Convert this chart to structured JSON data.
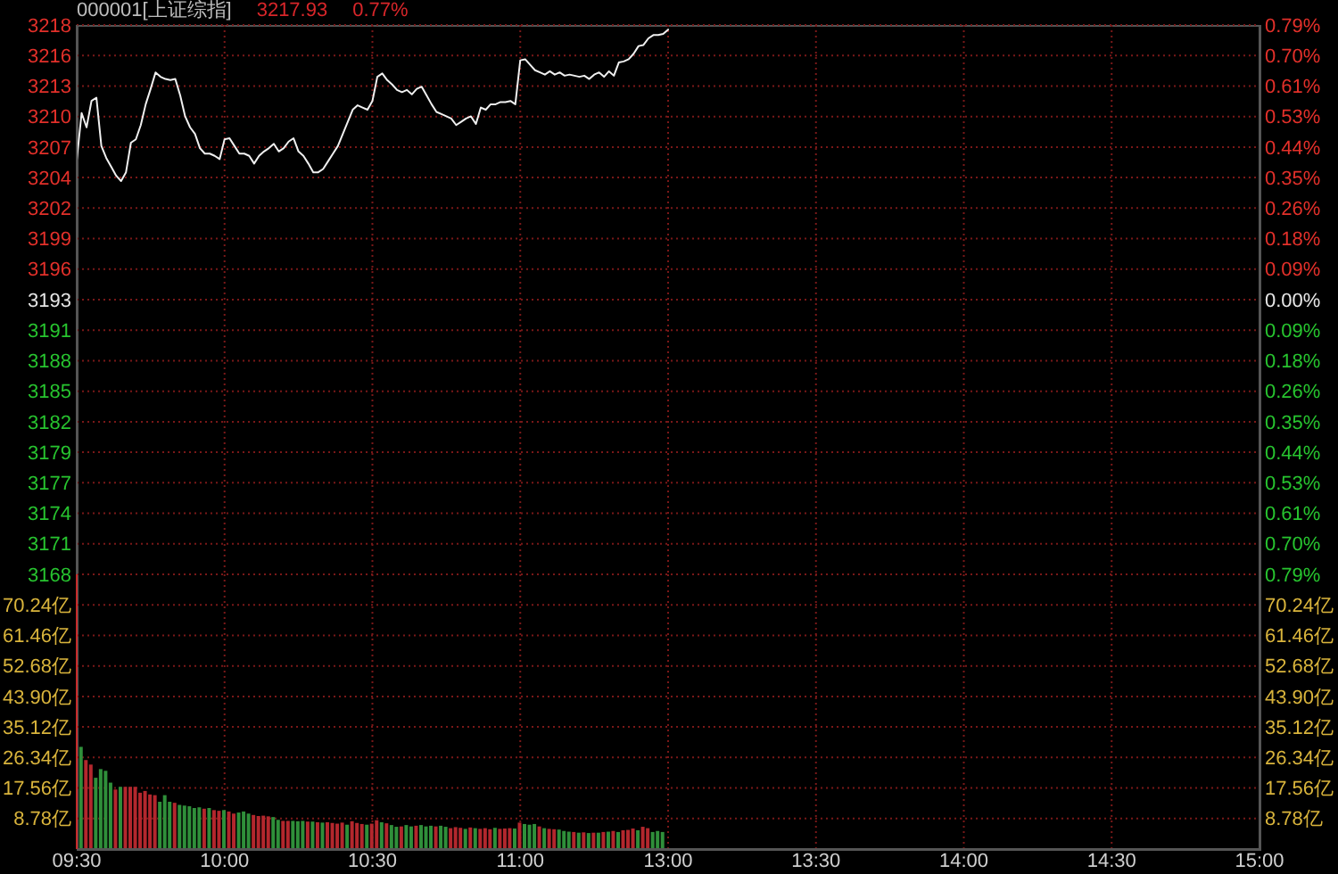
{
  "chart_data": [
    {
      "type": "line",
      "title": "000001[上证综指]",
      "annotations": [
        "3217.93",
        "0.77%"
      ],
      "categories": [
        null,
        null,
        null,
        null,
        null,
        null,
        null,
        null,
        null,
        null,
        null,
        null,
        null,
        null,
        null,
        null,
        null,
        null,
        null,
        null,
        null,
        null,
        null,
        null,
        null,
        null,
        null,
        null,
        null,
        null,
        null,
        null,
        null,
        null,
        null,
        null,
        null,
        null,
        null,
        null,
        null,
        null,
        null,
        null,
        null,
        null,
        null,
        null,
        null,
        null,
        null,
        null,
        null,
        null,
        null,
        null,
        null,
        null,
        null,
        null,
        null,
        null,
        null,
        null,
        null,
        null,
        null,
        null,
        null,
        null,
        null,
        null,
        null,
        null,
        null,
        null,
        null,
        null,
        null,
        null,
        null,
        null,
        null,
        null,
        null,
        null,
        null,
        null,
        null,
        null,
        null,
        null,
        null,
        null,
        null,
        null,
        null,
        null,
        null,
        null,
        null,
        null,
        null,
        null,
        null,
        null,
        null,
        null,
        null,
        null,
        null,
        null,
        null,
        null,
        null,
        null,
        null,
        null,
        null,
        null,
        null,
        null,
        null,
        null,
        null,
        null,
        null,
        null,
        null,
        null,
        null,
        null,
        null,
        null,
        null,
        null,
        null,
        null,
        null,
        null,
        null,
        null,
        null,
        null,
        null,
        null,
        null,
        null,
        null,
        null,
        null,
        null,
        null,
        null,
        null,
        null,
        null,
        null,
        null,
        null,
        null,
        null,
        null,
        null,
        null,
        null,
        null,
        null,
        null,
        null,
        null,
        null,
        null,
        null,
        null,
        null,
        null,
        null,
        null,
        null,
        null,
        null,
        null,
        null,
        null,
        null,
        null,
        null,
        null,
        null,
        null,
        null,
        null,
        null,
        null,
        null,
        null,
        null,
        null,
        null,
        null,
        null,
        null,
        null,
        null,
        null,
        null,
        null,
        null,
        null,
        null,
        null,
        null,
        null,
        null,
        null,
        null,
        null,
        null,
        null,
        null,
        null,
        null,
        null,
        null,
        null,
        null,
        null,
        null,
        null,
        null,
        null,
        null,
        null,
        null,
        null,
        null,
        null,
        null,
        null,
        null
      ],
      "values": [
        3206.0,
        3210.3,
        3209.0,
        3211.4,
        3211.7,
        3207.3,
        3206.2,
        3205.4,
        3204.6,
        3204.1,
        3204.9,
        3207.6,
        3207.9,
        3209.2,
        3211.1,
        3212.5,
        3214.0,
        3213.6,
        3213.4,
        3213.3,
        3213.4,
        3211.9,
        3210.0,
        3209.0,
        3208.4,
        3207.1,
        3206.6,
        3206.6,
        3206.4,
        3206.1,
        3207.9,
        3208.0,
        3207.3,
        3206.6,
        3206.6,
        3206.4,
        3205.7,
        3206.4,
        3206.8,
        3207.1,
        3207.5,
        3206.8,
        3207.1,
        3207.7,
        3208.0,
        3206.8,
        3206.4,
        3205.7,
        3204.9,
        3204.9,
        3205.2,
        3205.9,
        3206.6,
        3207.3,
        3208.4,
        3209.5,
        3210.6,
        3211.0,
        3210.8,
        3210.6,
        3211.4,
        3213.6,
        3213.9,
        3213.3,
        3212.9,
        3212.4,
        3212.2,
        3212.4,
        3212.0,
        3212.5,
        3212.7,
        3211.9,
        3211.1,
        3210.4,
        3210.2,
        3210.0,
        3209.8,
        3209.2,
        3209.5,
        3209.8,
        3210.0,
        3209.3,
        3210.8,
        3210.6,
        3211.1,
        3211.1,
        3211.3,
        3211.3,
        3211.4,
        3211.1,
        3215.1,
        3215.2,
        3214.7,
        3214.2,
        3214.0,
        3213.8,
        3214.1,
        3213.8,
        3214.0,
        3213.7,
        3213.8,
        3213.7,
        3213.6,
        3213.7,
        3213.4,
        3213.8,
        3214.0,
        3213.6,
        3214.1,
        3213.7,
        3214.9,
        3215.0,
        3215.2,
        3215.7,
        3216.4,
        3216.5,
        3217.1,
        3217.4,
        3217.4,
        3217.5,
        3217.9,
        null,
        null,
        null,
        null,
        null,
        null,
        null,
        null,
        null,
        null,
        null,
        null,
        null,
        null,
        null,
        null,
        null,
        null,
        null,
        null,
        null,
        null,
        null,
        null,
        null,
        null,
        null,
        null,
        null,
        null,
        null,
        null,
        null,
        null,
        null,
        null,
        null,
        null,
        null,
        null,
        null,
        null,
        null,
        null,
        null,
        null,
        null,
        null,
        null,
        null,
        null,
        null,
        null,
        null,
        null,
        null,
        null,
        null,
        null,
        null,
        null,
        null,
        null,
        null,
        null,
        null,
        null,
        null,
        null,
        null,
        null,
        null,
        null,
        null,
        null,
        null,
        null,
        null,
        null,
        null,
        null,
        null,
        null,
        null,
        null,
        null,
        null,
        null,
        null,
        null,
        null,
        null,
        null,
        null,
        null,
        null,
        null,
        null,
        null,
        null,
        null,
        null,
        null,
        null,
        null,
        null,
        null,
        null,
        null,
        null,
        null,
        null,
        null,
        null,
        null,
        null,
        null,
        null,
        null,
        null
      ],
      "color": "#f0f0f0",
      "ylim": [
        3168.28,
        3218.32
      ],
      "yticks": [
        {
          "value": 3168.28,
          "label": "3168"
        },
        {
          "value": 3171.06,
          "label": "3171"
        },
        {
          "value": 3173.84,
          "label": "3174"
        },
        {
          "value": 3176.62,
          "label": "3177"
        },
        {
          "value": 3179.4,
          "label": "3179"
        },
        {
          "value": 3182.18,
          "label": "3182"
        },
        {
          "value": 3184.96,
          "label": "3185"
        },
        {
          "value": 3187.74,
          "label": "3188"
        },
        {
          "value": 3190.52,
          "label": "3191"
        },
        {
          "value": 3193.3,
          "label": "3193"
        },
        {
          "value": 3196.08,
          "label": "3196"
        },
        {
          "value": 3198.86,
          "label": "3199"
        },
        {
          "value": 3201.64,
          "label": "3202"
        },
        {
          "value": 3204.42,
          "label": "3204"
        },
        {
          "value": 3207.2,
          "label": "3207"
        },
        {
          "value": 3209.98,
          "label": "3210"
        },
        {
          "value": 3212.76,
          "label": "3213"
        },
        {
          "value": 3215.54,
          "label": "3216"
        },
        {
          "value": 3218.32,
          "label": "3218"
        }
      ],
      "y2lim": [
        -0.79,
        0.79
      ],
      "y2ticks": [
        {
          "value": -0.79,
          "label": "0.79%"
        },
        {
          "value": -0.702,
          "label": "0.70%"
        },
        {
          "value": -0.614,
          "label": "0.61%"
        },
        {
          "value": -0.527,
          "label": "0.53%"
        },
        {
          "value": -0.439,
          "label": "0.44%"
        },
        {
          "value": -0.351,
          "label": "0.35%"
        },
        {
          "value": -0.263,
          "label": "0.26%"
        },
        {
          "value": -0.176,
          "label": "0.18%"
        },
        {
          "value": -0.088,
          "label": "0.09%"
        },
        {
          "value": 0,
          "label": "0.00%"
        },
        {
          "value": 0.088,
          "label": "0.09%"
        },
        {
          "value": 0.176,
          "label": "0.18%"
        },
        {
          "value": 0.263,
          "label": "0.26%"
        },
        {
          "value": 0.351,
          "label": "0.35%"
        },
        {
          "value": 0.439,
          "label": "0.44%"
        },
        {
          "value": 0.527,
          "label": "0.53%"
        },
        {
          "value": 0.614,
          "label": "0.61%"
        },
        {
          "value": 0.702,
          "label": "0.70%"
        },
        {
          "value": 0.79,
          "label": "0.79%"
        }
      ],
      "grid": true,
      "tick_labels": "y"
    },
    {
      "type": "bar",
      "categories": [
        "09:30",
        null,
        null,
        null,
        null,
        null,
        null,
        null,
        null,
        null,
        null,
        null,
        null,
        null,
        null,
        null,
        null,
        null,
        null,
        null,
        null,
        null,
        null,
        null,
        null,
        null,
        null,
        null,
        null,
        null,
        "10:00",
        null,
        null,
        null,
        null,
        null,
        null,
        null,
        null,
        null,
        null,
        null,
        null,
        null,
        null,
        null,
        null,
        null,
        null,
        null,
        null,
        null,
        null,
        null,
        null,
        null,
        null,
        null,
        null,
        null,
        "10:30",
        null,
        null,
        null,
        null,
        null,
        null,
        null,
        null,
        null,
        null,
        null,
        null,
        null,
        null,
        null,
        null,
        null,
        null,
        null,
        null,
        null,
        null,
        null,
        null,
        null,
        null,
        null,
        null,
        null,
        "11:00",
        null,
        null,
        null,
        null,
        null,
        null,
        null,
        null,
        null,
        null,
        null,
        null,
        null,
        null,
        null,
        null,
        null,
        null,
        null,
        null,
        null,
        null,
        null,
        null,
        null,
        null,
        null,
        null,
        null,
        "13:00",
        null,
        null,
        null,
        null,
        null,
        null,
        null,
        null,
        null,
        null,
        null,
        null,
        null,
        null,
        null,
        null,
        null,
        null,
        null,
        null,
        null,
        null,
        null,
        null,
        null,
        null,
        null,
        null,
        null,
        "13:30",
        null,
        null,
        null,
        null,
        null,
        null,
        null,
        null,
        null,
        null,
        null,
        null,
        null,
        null,
        null,
        null,
        null,
        null,
        null,
        null,
        null,
        null,
        null,
        null,
        null,
        null,
        null,
        null,
        null,
        "14:00",
        null,
        null,
        null,
        null,
        null,
        null,
        null,
        null,
        null,
        null,
        null,
        null,
        null,
        null,
        null,
        null,
        null,
        null,
        null,
        null,
        null,
        null,
        null,
        null,
        null,
        null,
        null,
        null,
        null,
        "14:30",
        null,
        null,
        null,
        null,
        null,
        null,
        null,
        null,
        null,
        null,
        null,
        null,
        null,
        null,
        null,
        null,
        null,
        null,
        null,
        null,
        null,
        null,
        null,
        null,
        null,
        null,
        null,
        null,
        null,
        "15:00"
      ],
      "values": [
        null,
        29.4,
        25.6,
        24.3,
        20.5,
        23.0,
        22.5,
        19.1,
        17.1,
        17.9,
        17.9,
        17.9,
        17.9,
        16.2,
        16.7,
        15.7,
        15.5,
        13.6,
        15.5,
        13.6,
        13.3,
        12.7,
        12.5,
        12.3,
        11.8,
        12.0,
        11.6,
        11.8,
        11.2,
        11.0,
        11.2,
        10.8,
        10.2,
        10.5,
        10.8,
        10.2,
        9.8,
        9.5,
        9.6,
        9.4,
        9.2,
        8.4,
        8.1,
        8.1,
        8.1,
        8.0,
        8.1,
        7.9,
        7.9,
        7.7,
        7.6,
        7.7,
        7.5,
        7.3,
        7.6,
        7.0,
        8.0,
        7.5,
        7.2,
        7.0,
        7.3,
        8.3,
        7.7,
        7.4,
        6.9,
        6.4,
        6.5,
        6.9,
        6.5,
        6.7,
        6.9,
        6.5,
        6.7,
        6.5,
        6.7,
        6.4,
        6.0,
        6.3,
        6.1,
        5.8,
        6.2,
        6.0,
        5.8,
        6.0,
        5.7,
        6.1,
        5.8,
        5.9,
        6.0,
        5.9,
        7.6,
        7.2,
        7.0,
        7.2,
        6.5,
        6.0,
        5.8,
        5.7,
        5.6,
        5.2,
        5.0,
        4.9,
        4.7,
        4.8,
        4.6,
        4.7,
        4.7,
        4.9,
        5.0,
        5.2,
        4.9,
        5.4,
        5.5,
        5.9,
        5.4,
        6.4,
        6.0,
        4.9,
        5.2,
        4.9,
        null,
        null,
        null,
        null,
        null,
        null,
        null,
        null,
        null,
        null,
        null,
        null,
        null,
        null,
        null,
        null,
        null,
        null,
        null,
        null,
        null,
        null,
        null,
        null,
        null,
        null,
        null,
        null,
        null,
        null,
        null,
        null,
        null,
        null,
        null,
        null,
        null,
        null,
        null,
        null,
        null,
        null,
        null,
        null,
        null,
        null,
        null,
        null,
        null,
        null,
        null,
        null,
        null,
        null,
        null,
        null,
        null,
        null,
        null,
        null,
        null,
        null,
        null,
        null,
        null,
        null,
        null,
        null,
        null,
        null,
        null,
        null,
        null,
        null,
        null,
        null,
        null,
        null,
        null,
        null,
        null,
        null,
        null,
        null,
        null,
        null,
        null,
        null,
        null,
        null,
        null,
        null,
        null,
        null,
        null,
        null,
        null,
        null,
        null,
        null,
        null,
        null,
        null,
        null,
        null,
        null,
        null,
        null,
        null,
        null,
        null,
        null,
        null,
        null,
        null,
        null,
        null,
        null,
        null,
        null,
        null
      ],
      "colors": [
        null,
        "#2f8f3a",
        "#b3272d",
        "#b3272d",
        "#2f8f3a",
        "#2f8f3a",
        "#2f8f3a",
        "#2f8f3a",
        "#b3272d",
        "#2f8f3a",
        "#b3272d",
        "#b3272d",
        "#b3272d",
        "#b3272d",
        "#b3272d",
        "#b3272d",
        "#b3272d",
        "#2f8f3a",
        "#2f8f3a",
        "#2f8f3a",
        "#b3272d",
        "#2f8f3a",
        "#2f8f3a",
        "#2f8f3a",
        "#2f8f3a",
        "#2f8f3a",
        "#b3272d",
        "#2f8f3a",
        "#b3272d",
        "#b3272d",
        "#2f8f3a",
        "#b3272d",
        "#b3272d",
        "#2f8f3a",
        "#2f8f3a",
        "#2f8f3a",
        "#b3272d",
        "#b3272d",
        "#b3272d",
        "#b3272d",
        "#2f8f3a",
        "#2f8f3a",
        "#b3272d",
        "#b3272d",
        "#2f8f3a",
        "#2f8f3a",
        "#2f8f3a",
        "#b3272d",
        "#2f8f3a",
        "#b3272d",
        "#2f8f3a",
        "#b3272d",
        "#b3272d",
        "#b3272d",
        "#b3272d",
        "#2f8f3a",
        "#b3272d",
        "#b3272d",
        "#b3272d",
        "#2f8f3a",
        "#b3272d",
        "#b3272d",
        "#2f8f3a",
        "#b3272d",
        "#2f8f3a",
        "#2f8f3a",
        "#b3272d",
        "#2f8f3a",
        "#2f8f3a",
        "#b3272d",
        "#2f8f3a",
        "#2f8f3a",
        "#2f8f3a",
        "#b3272d",
        "#2f8f3a",
        "#2f8f3a",
        "#b3272d",
        "#b3272d",
        "#b3272d",
        "#2f8f3a",
        "#b3272d",
        "#2f8f3a",
        "#b3272d",
        "#b3272d",
        "#b3272d",
        "#2f8f3a",
        "#b3272d",
        "#b3272d",
        "#b3272d",
        "#2f8f3a",
        "#b3272d",
        "#2f8f3a",
        "#2f8f3a",
        "#2f8f3a",
        "#b3272d",
        "#2f8f3a",
        "#b3272d",
        "#b3272d",
        "#2f8f3a",
        "#2f8f3a",
        "#2f8f3a",
        "#b3272d",
        "#2f8f3a",
        "#b3272d",
        "#2f8f3a",
        "#b3272d",
        "#2f8f3a",
        "#b3272d",
        "#2f8f3a",
        "#b3272d",
        "#2f8f3a",
        "#b3272d",
        "#b3272d",
        "#b3272d",
        "#2f8f3a",
        "#b3272d",
        "#b3272d",
        "#2f8f3a",
        "#2f8f3a",
        "#2f8f3a",
        null,
        null,
        null,
        null,
        null,
        null,
        null,
        null,
        null,
        null,
        null,
        null,
        null,
        null,
        null,
        null,
        null,
        null,
        null,
        null,
        null,
        null,
        null,
        null,
        null,
        null,
        null,
        null,
        null,
        null,
        null,
        null,
        null,
        null,
        null,
        null,
        null,
        null,
        null,
        null,
        null,
        null,
        null,
        null,
        null,
        null,
        null,
        null,
        null,
        null,
        null,
        null,
        null,
        null,
        null,
        null,
        null,
        null,
        null,
        null,
        null,
        null,
        null,
        null,
        null,
        null,
        null,
        null,
        null,
        null,
        null,
        null,
        null,
        null,
        null,
        null,
        null,
        null,
        null,
        null,
        null,
        null,
        null,
        null,
        null,
        null,
        null,
        null,
        null,
        null,
        null,
        null,
        null,
        null,
        null,
        null,
        null,
        null,
        null,
        null,
        null,
        null,
        null,
        null,
        null,
        null,
        null,
        null,
        null,
        null,
        null,
        null,
        null,
        null,
        null,
        null,
        null,
        null,
        null,
        null,
        null
      ],
      "ylim": [
        0,
        79.02
      ],
      "yticks": [
        {
          "value": 8.78,
          "label": "8.78亿"
        },
        {
          "value": 17.56,
          "label": "17.56亿"
        },
        {
          "value": 26.34,
          "label": "26.34亿"
        },
        {
          "value": 35.12,
          "label": "35.12亿"
        },
        {
          "value": 43.9,
          "label": "43.90亿"
        },
        {
          "value": 52.68,
          "label": "52.68亿"
        },
        {
          "value": 61.46,
          "label": "61.46亿"
        },
        {
          "value": 70.24,
          "label": "70.24亿"
        }
      ],
      "y2lim": [
        0,
        79.02
      ],
      "y2ticks": [
        {
          "value": 8.78,
          "label": "8.78亿"
        },
        {
          "value": 17.56,
          "label": "17.56亿"
        },
        {
          "value": 26.34,
          "label": "26.34亿"
        },
        {
          "value": 35.12,
          "label": "35.12亿"
        },
        {
          "value": 43.9,
          "label": "43.90亿"
        },
        {
          "value": 52.68,
          "label": "52.68亿"
        },
        {
          "value": 61.46,
          "label": "61.46亿"
        },
        {
          "value": 70.24,
          "label": "70.24亿"
        }
      ],
      "grid": true
    }
  ]
}
